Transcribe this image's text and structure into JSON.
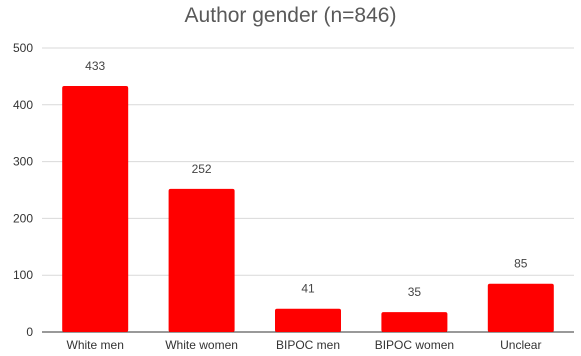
{
  "chart_data": {
    "type": "bar",
    "title": "Author gender (n=846)",
    "categories": [
      "White men",
      "White women",
      "BIPOC men",
      "BIPOC women",
      "Unclear"
    ],
    "values": [
      433,
      252,
      41,
      35,
      85
    ],
    "data_labels": [
      "433",
      "252",
      "41",
      "35",
      "85"
    ],
    "y_ticks": [
      "0",
      "100",
      "200",
      "300",
      "400",
      "500"
    ],
    "ylim": [
      0,
      500
    ],
    "xlabel": "",
    "ylabel": "",
    "grid": true,
    "legend": "none",
    "bar_color": "#ff0000",
    "grid_color": "#d9d9d9"
  }
}
